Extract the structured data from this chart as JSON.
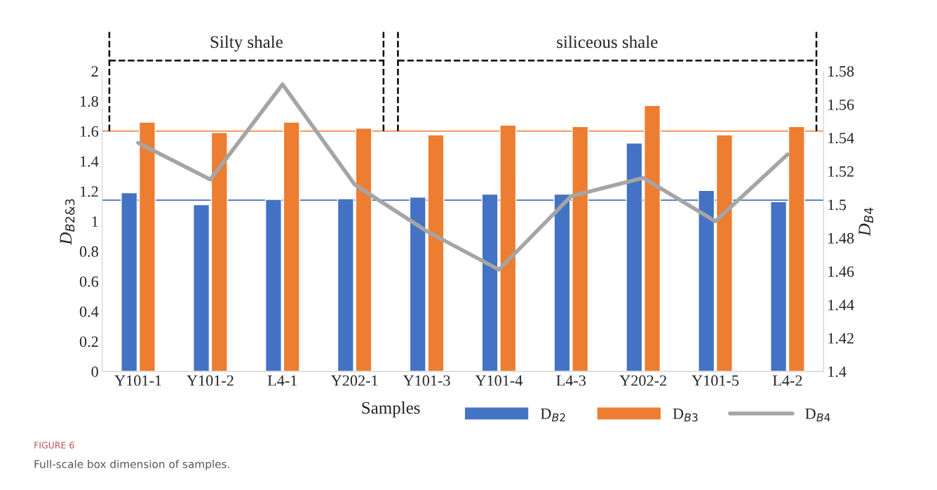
{
  "chart_data": {
    "type": "bar",
    "xlabel": "Samples",
    "ylabel": "D$_{B2&3}$",
    "y2label": "D$_{B4}$",
    "categories": [
      "Y101-1",
      "Y101-2",
      "L4-1",
      "Y202-1",
      "Y101-3",
      "Y101-4",
      "L4-3",
      "Y202-2",
      "Y101-5",
      "L4-2"
    ],
    "series": [
      {
        "name": "D$_{B2}$",
        "color": "#4472c4",
        "values": [
          1.19,
          1.11,
          1.145,
          1.15,
          1.16,
          1.18,
          1.18,
          1.52,
          1.205,
          1.13
        ]
      },
      {
        "name": "D$_{B3}$",
        "color": "#ed7d31",
        "values": [
          1.66,
          1.59,
          1.66,
          1.62,
          1.575,
          1.64,
          1.63,
          1.77,
          1.575,
          1.63
        ]
      },
      {
        "name": "D$_{B4}$",
        "type": "line",
        "axis": "y2",
        "color": "#a5a5a5",
        "values": [
          1.537,
          1.515,
          1.572,
          1.512,
          1.484,
          1.461,
          1.505,
          1.516,
          1.49,
          1.53
        ]
      }
    ],
    "ylim": [
      0,
      2
    ],
    "yticks": [
      0,
      0.2,
      0.4,
      0.6,
      0.8,
      1,
      1.2,
      1.4,
      1.6,
      1.8,
      2
    ],
    "y2lim": [
      1.4,
      1.58
    ],
    "y2ticks": [
      1.4,
      1.42,
      1.44,
      1.46,
      1.48,
      1.5,
      1.52,
      1.54,
      1.56,
      1.58
    ],
    "ref_lines": [
      {
        "axis": "y",
        "value": 1.14,
        "color": "#4472c4"
      },
      {
        "axis": "y",
        "value": 1.6,
        "color": "#ed7d31"
      }
    ],
    "annotations": [
      "Silty shale",
      "siliceous shale",
      "FIGURE 6",
      "Full-scale box dimension of samples."
    ],
    "legend": "bottom right",
    "grid": false
  }
}
